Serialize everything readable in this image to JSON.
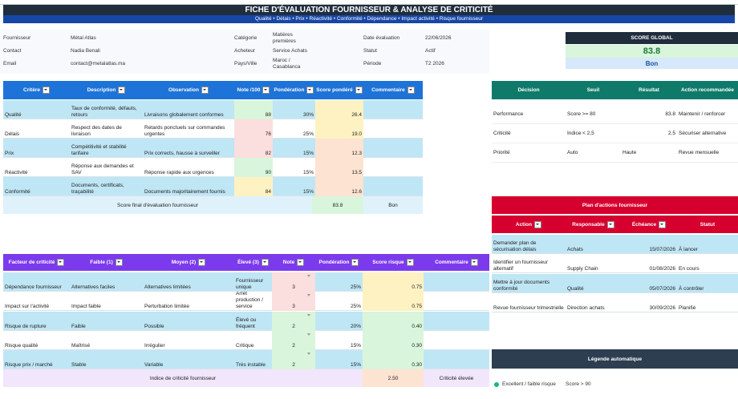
{
  "title": "FICHE D'ÉVALUATION FOURNISSEUR & ANALYSE DE CRITICITÉ",
  "subtitle": "Qualité • Délais • Prix • Réactivité • Conformité • Dépendance • Impact activité • Risque fournisseur",
  "info": {
    "fournisseur_label": "Fournisseur",
    "fournisseur_value": "Métal Atlas",
    "contact_label": "Contact",
    "contact_value": "Nadia Benali",
    "email_label": "Email",
    "email_value": "contact@metalatlas.ma",
    "categorie_label": "Catégorie",
    "categorie_value": "Matières premières",
    "acheteur_label": "Acheteur",
    "acheteur_value": "Service Achats",
    "pays_label": "Pays/Ville",
    "pays_value": "Maroc / Casablanca",
    "date_label": "Date évaluation",
    "date_value": "22/06/2026",
    "statut_label": "Statut",
    "statut_value": "Actif",
    "periode_label": "Période",
    "periode_value": "T2 2026"
  },
  "score_global": {
    "label": "SCORE GLOBAL",
    "value": "83.8",
    "rating": "Bon"
  },
  "eval": {
    "headers": [
      "Critère",
      "Description",
      "Observation",
      "Note /100",
      "Pondération",
      "Score pondéré",
      "Commentaire"
    ],
    "rows": [
      {
        "critere": "Qualité",
        "description": "Taux de conformité, défauts, retours",
        "observation": "Livraisons globalement conformes",
        "note": "88",
        "ponderation": "30%",
        "score": "26.4"
      },
      {
        "critere": "Délais",
        "description": "Respect des dates de livraison",
        "observation": "Retards ponctuels sur commandes urgentes",
        "note": "76",
        "ponderation": "25%",
        "score": "19.0"
      },
      {
        "critere": "Prix",
        "description": "Compétitivité et stabilité tarifaire",
        "observation": "Prix corrects, hausse à surveiller",
        "note": "82",
        "ponderation": "15%",
        "score": "12.3"
      },
      {
        "critere": "Réactivité",
        "description": "Réponse aux demandes et SAV",
        "observation": "Réponse rapide aux urgences",
        "note": "90",
        "ponderation": "15%",
        "score": "13.5"
      },
      {
        "critere": "Conformité",
        "description": "Documents, certificats, traçabilité",
        "observation": "Documents majoritairement fournis",
        "note": "84",
        "ponderation": "15%",
        "score": "12.6"
      }
    ],
    "final_label": "Score final d'évaluation fournisseur",
    "final_score": "83.8",
    "final_rating": "Bon"
  },
  "risk": {
    "headers": [
      "Facteur de criticité",
      "Faible (1)",
      "Moyen (2)",
      "Élevé (3)",
      "Note",
      "Pondération",
      "Score risque",
      "Commentaire"
    ],
    "rows": [
      {
        "facteur": "Dépendance fournisseur",
        "faible": "Alternatives faciles",
        "moyen": "Alternatives limitées",
        "eleve": "Fournisseur unique",
        "note": "3",
        "ponderation": "25%",
        "score": "0.75"
      },
      {
        "facteur": "Impact sur l'activité",
        "faible": "Impact faible",
        "moyen": "Perturbation limitée",
        "eleve": "Arrêt production / service",
        "note": "3",
        "ponderation": "25%",
        "score": "0.75"
      },
      {
        "facteur": "Risque de rupture",
        "faible": "Faible",
        "moyen": "Possible",
        "eleve": "Élevé ou fréquent",
        "note": "2",
        "ponderation": "20%",
        "score": "0.40"
      },
      {
        "facteur": "Risque qualité",
        "faible": "Maîtrisé",
        "moyen": "Irrégulier",
        "eleve": "Critique",
        "note": "2",
        "ponderation": "15%",
        "score": "0.30"
      },
      {
        "facteur": "Risque prix / marché",
        "faible": "Stable",
        "moyen": "Variable",
        "eleve": "Très instable",
        "note": "2",
        "ponderation": "15%",
        "score": "0.30"
      }
    ],
    "index_label": "Indice de criticité fournisseur",
    "index_value": "2.50",
    "index_rating": "Criticité élevée"
  },
  "decision": {
    "headers": [
      "Décision",
      "Seuil",
      "Résultat",
      "Action recommandée"
    ],
    "rows": [
      {
        "decision": "Performance",
        "seuil": "Score >= 80",
        "resultat": "83.8",
        "action": "Maintenir / renforcer"
      },
      {
        "decision": "Criticité",
        "seuil": "Indice < 2,5",
        "resultat": "2.5",
        "action": "Sécuriser alternative"
      },
      {
        "decision": "Priorité",
        "seuil": "Auto",
        "resultat": "Haute",
        "action": "Revue mensuelle"
      }
    ]
  },
  "plan": {
    "title": "Plan d'actions fournisseur",
    "headers": [
      "Action",
      "Responsable",
      "Échéance",
      "Statut"
    ],
    "rows": [
      {
        "action": "Demander plan de sécurisation délais",
        "responsable": "Achats",
        "echeance": "15/07/2026",
        "statut": "À lancer"
      },
      {
        "action": "Identifier un fournisseur alternatif",
        "responsable": "Supply Chain",
        "echeance": "01/08/2026",
        "statut": "En cours"
      },
      {
        "action": "Mettre à jour documents conformité",
        "responsable": "Qualité",
        "echeance": "05/07/2026",
        "statut": "À contrôler"
      },
      {
        "action": "Revue fournisseur trimestrielle",
        "responsable": "Direction achats",
        "echeance": "30/09/2026",
        "statut": "Planifié"
      }
    ]
  },
  "legend": {
    "title": "Légende automatique",
    "item_label": "Excellent / faible risque",
    "item_rule": "Score > 90"
  },
  "colors": {
    "eval_header": "#1e73d8",
    "risk_header": "#7c3aed",
    "decision_header": "#0f7a6a",
    "plan_header": "#d6002f",
    "legend_header": "#2c3e50",
    "title_bg": "#1f2d3d",
    "row_blue": "#bfe6f5",
    "note_green": "#d9f5dc",
    "note_red": "#fbdede",
    "score_yellow": "#fff2c2",
    "score_peach": "#fde3d2"
  }
}
